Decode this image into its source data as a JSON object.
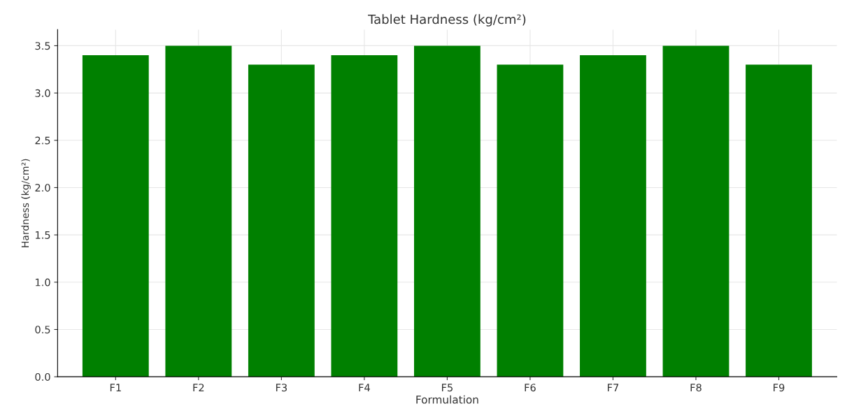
{
  "chart_data": {
    "type": "bar",
    "title": "Tablet Hardness (kg/cm²)",
    "xlabel": "Formulation",
    "ylabel": "Hardness (kg/cm²)",
    "categories": [
      "F1",
      "F2",
      "F3",
      "F4",
      "F5",
      "F6",
      "F7",
      "F8",
      "F9"
    ],
    "values": [
      3.4,
      3.5,
      3.3,
      3.4,
      3.5,
      3.3,
      3.4,
      3.5,
      3.3
    ],
    "color": "#008000",
    "ylim": [
      0,
      3.67
    ],
    "yticks": [
      {
        "value": 0,
        "label": "0.0"
      },
      0.5,
      {
        "value": 1,
        "label": "1.0"
      },
      1.5,
      {
        "value": 2,
        "label": "2.0"
      },
      2.5,
      {
        "value": 3,
        "label": "3.0"
      },
      3.5
    ],
    "grid": true
  }
}
